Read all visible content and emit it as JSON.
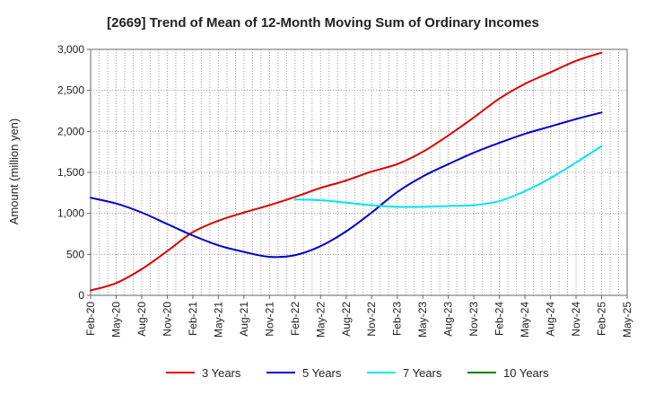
{
  "chart_data": {
    "type": "line",
    "title": "[2669]  Trend of Mean of 12-Month Moving Sum of Ordinary Incomes",
    "xlabel": "",
    "ylabel": "Amount (million yen)",
    "ylim": [
      0,
      3000
    ],
    "yticks": [
      0,
      500,
      1000,
      1500,
      2000,
      2500,
      3000
    ],
    "ytick_labels": [
      "0",
      "500",
      "1,000",
      "1,500",
      "2,000",
      "2,500",
      "3,000"
    ],
    "categories": [
      "Feb-20",
      "May-20",
      "Aug-20",
      "Nov-20",
      "Feb-21",
      "May-21",
      "Aug-21",
      "Nov-21",
      "Feb-22",
      "May-22",
      "Aug-22",
      "Nov-22",
      "Feb-23",
      "May-23",
      "Aug-23",
      "Nov-23",
      "Feb-24",
      "May-24",
      "Aug-24",
      "Nov-24",
      "Feb-25",
      "May-25"
    ],
    "grid": true,
    "legend_position": "bottom",
    "series": [
      {
        "name": "3 Years",
        "color": "#dd0000",
        "values": [
          60,
          150,
          320,
          540,
          770,
          910,
          1010,
          1100,
          1200,
          1310,
          1400,
          1510,
          1600,
          1750,
          1950,
          2170,
          2400,
          2580,
          2720,
          2860,
          2960,
          null
        ]
      },
      {
        "name": "5 Years",
        "color": "#0000cc",
        "values": [
          1190,
          1120,
          1010,
          870,
          730,
          610,
          530,
          470,
          490,
          600,
          780,
          1010,
          1260,
          1450,
          1600,
          1740,
          1860,
          1970,
          2060,
          2150,
          2230,
          null
        ]
      },
      {
        "name": "7 Years",
        "color": "#00e5ee",
        "values": [
          null,
          null,
          null,
          null,
          null,
          null,
          null,
          null,
          1170,
          1160,
          1130,
          1100,
          1080,
          1080,
          1090,
          1100,
          1150,
          1270,
          1430,
          1620,
          1820,
          null
        ]
      },
      {
        "name": "10 Years",
        "color": "#008000",
        "values": [
          null,
          null,
          null,
          null,
          null,
          null,
          null,
          null,
          null,
          null,
          null,
          null,
          null,
          null,
          null,
          null,
          null,
          null,
          null,
          null,
          null,
          null
        ]
      }
    ]
  }
}
